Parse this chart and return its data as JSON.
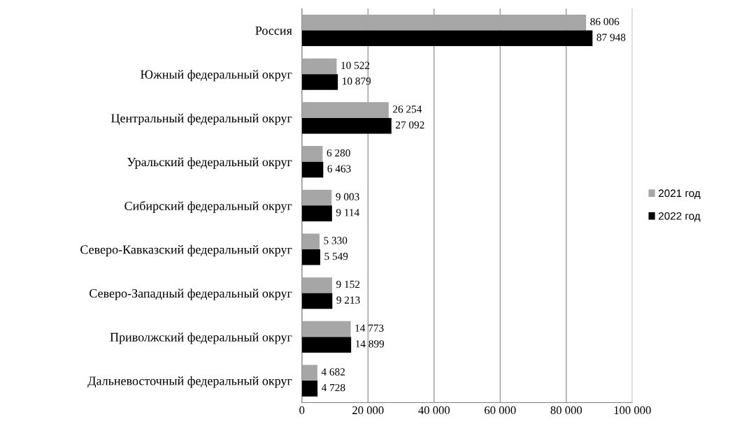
{
  "chart_data": {
    "type": "bar",
    "orientation": "horizontal",
    "categories": [
      "Россия",
      "Южный федеральный округ",
      "Центральный федеральный округ",
      "Уральский федеральный округ",
      "Сибирский федеральный округ",
      "Северо-Кавказский федеральный округ",
      "Северо-Западный федеральный округ",
      "Приволжский федеральный округ",
      "Дальневосточный федеральный округ"
    ],
    "series": [
      {
        "name": "2021 год",
        "color": "#a6a6a6",
        "values": [
          86006,
          10522,
          26254,
          6280,
          9003,
          5330,
          9152,
          14773,
          4682
        ],
        "value_labels": [
          "86 006",
          "10 522",
          "26 254",
          "6 280",
          "9 003",
          "5 330",
          "9 152",
          "14 773",
          "4 682"
        ]
      },
      {
        "name": "2022 год",
        "color": "#000000",
        "values": [
          87948,
          10879,
          27092,
          6463,
          9114,
          5549,
          9213,
          14899,
          4728
        ],
        "value_labels": [
          "87 948",
          "10 879",
          "27 092",
          "6 463",
          "9 114",
          "5 549",
          "9 213",
          "14 899",
          "4 728"
        ]
      }
    ],
    "xlim": [
      0,
      100000
    ],
    "xticks": [
      0,
      {
        "value": 20000,
        "label": "20 000"
      },
      {
        "value": 40000,
        "label": "40 000"
      },
      {
        "value": 60000,
        "label": "60 000"
      },
      {
        "value": 80000,
        "label": "80 000"
      },
      {
        "value": 100000,
        "label": "100 000"
      }
    ],
    "grid": "x",
    "legend": "right"
  }
}
